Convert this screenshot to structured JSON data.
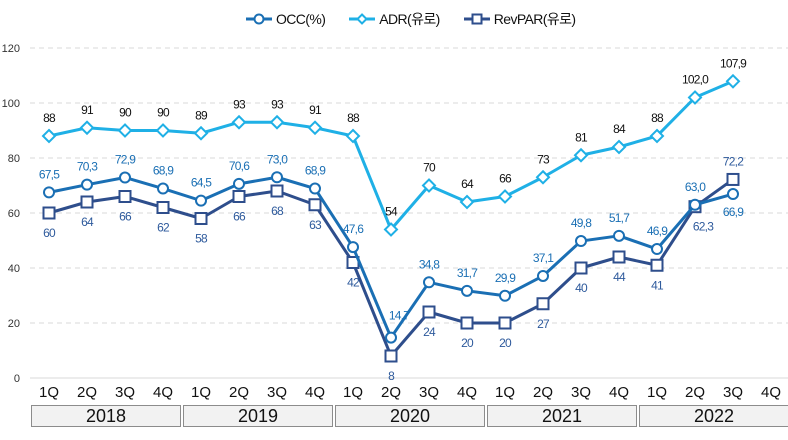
{
  "chart_data": {
    "type": "line",
    "title": "",
    "xlabel": "",
    "ylabel": "",
    "ylim": [
      0,
      120
    ],
    "yticks": [
      0,
      20,
      40,
      60,
      80,
      100,
      120
    ],
    "grid": true,
    "legend_position": "top-center",
    "categories": [
      "1Q",
      "2Q",
      "3Q",
      "4Q",
      "1Q",
      "2Q",
      "3Q",
      "4Q",
      "1Q",
      "2Q",
      "3Q",
      "4Q",
      "1Q",
      "2Q",
      "3Q",
      "4Q",
      "1Q",
      "2Q",
      "3Q",
      "4Q"
    ],
    "groups": [
      {
        "label": "2018",
        "span": 4
      },
      {
        "label": "2019",
        "span": 4
      },
      {
        "label": "2020",
        "span": 4
      },
      {
        "label": "2021",
        "span": 4
      },
      {
        "label": "2022",
        "span": 4
      }
    ],
    "series": [
      {
        "name": "OCC(%)",
        "color": "#1a6fb4",
        "marker": "circle",
        "label_color": "#1a6fb4",
        "values": [
          67.5,
          70.3,
          72.9,
          68.9,
          64.5,
          70.6,
          73.0,
          68.9,
          47.6,
          14.7,
          34.8,
          31.7,
          29.9,
          37.1,
          49.8,
          51.7,
          46.9,
          63.0,
          66.9,
          null
        ],
        "labels": [
          "67,5",
          "70,3",
          "72,9",
          "68,9",
          "64,5",
          "70,6",
          "73,0",
          "68,9",
          "47,6",
          "14,7",
          "34,8",
          "31,7",
          "29,9",
          "37,1",
          "49,8",
          "51,7",
          "46,9",
          "63,0",
          "66,9",
          ""
        ]
      },
      {
        "name": "ADR(유로)",
        "color": "#1fb0e6",
        "marker": "diamond",
        "label_color": "#111111",
        "values": [
          88,
          91,
          90,
          90,
          89,
          93,
          93,
          91,
          88,
          54,
          70,
          64,
          66,
          73,
          81,
          84,
          88,
          102.0,
          107.9,
          null
        ],
        "labels": [
          "88",
          "91",
          "90",
          "90",
          "89",
          "93",
          "93",
          "91",
          "88",
          "54",
          "70",
          "64",
          "66",
          "73",
          "81",
          "84",
          "88",
          "102,0",
          "107,9",
          ""
        ]
      },
      {
        "name": "RevPAR(유로)",
        "color": "#2e4e8c",
        "marker": "square",
        "label_color": "#2e5a9c",
        "values": [
          60,
          64,
          66,
          62,
          58,
          66,
          68,
          63,
          42,
          8,
          24,
          20,
          20,
          27,
          40,
          44,
          41,
          62.3,
          72.2,
          null
        ],
        "labels": [
          "60",
          "64",
          "66",
          "62",
          "58",
          "66",
          "68",
          "63",
          "42",
          "8",
          "24",
          "20",
          "20",
          "27",
          "40",
          "44",
          "41",
          "62,3",
          "72,2",
          ""
        ]
      }
    ]
  }
}
